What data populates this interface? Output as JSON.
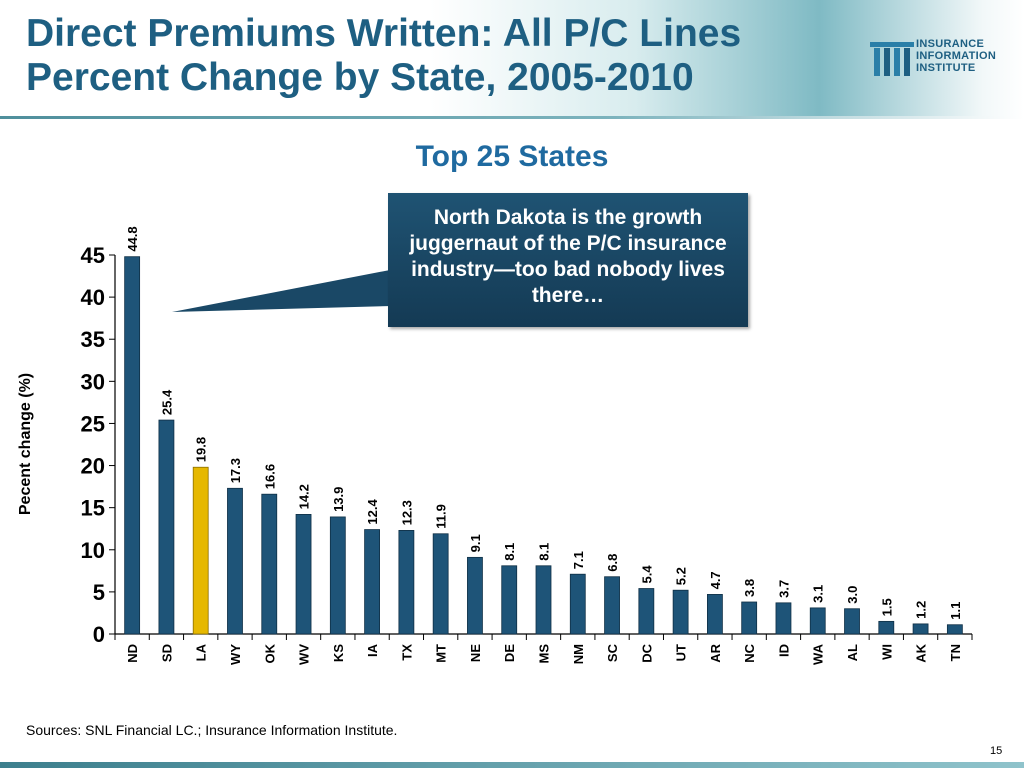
{
  "slide": {
    "title_line1": "Direct Premiums Written: All P/C Lines",
    "title_line2": "Percent Change by State, 2005-2010",
    "logo_lines": [
      "INSURANCE",
      "INFORMATION",
      "INSTITUTE"
    ],
    "callout": "North Dakota is the growth juggernaut of the P/C insurance industry—too bad nobody lives there…",
    "sources": "Sources:  SNL Financial LC.; Insurance Information Institute.",
    "page_number": "15"
  },
  "colors": {
    "title": "#1e5f82",
    "bar": "#1e5478",
    "highlight_bar": "#e6b800",
    "callout_bg": "#1a4866"
  },
  "chart_data": {
    "type": "bar",
    "title": "Top 25 States",
    "ylabel": "Pecent change (%)",
    "xlabel": "",
    "ylim": [
      0,
      45
    ],
    "yticks": [
      0,
      5,
      10,
      15,
      20,
      25,
      30,
      35,
      40,
      45
    ],
    "grid": false,
    "categories": [
      "ND",
      "SD",
      "LA",
      "WY",
      "OK",
      "WV",
      "KS",
      "IA",
      "TX",
      "MT",
      "NE",
      "DE",
      "MS",
      "NM",
      "SC",
      "DC",
      "UT",
      "AR",
      "NC",
      "ID",
      "WA",
      "AL",
      "WI",
      "AK",
      "TN"
    ],
    "values": [
      44.8,
      25.4,
      19.8,
      17.3,
      16.6,
      14.2,
      13.9,
      12.4,
      12.3,
      11.9,
      9.1,
      8.1,
      8.1,
      7.1,
      6.8,
      5.4,
      5.2,
      4.7,
      3.8,
      3.7,
      3.1,
      3.0,
      1.5,
      1.2,
      1.1
    ],
    "value_labels": [
      "44.8",
      "25.4",
      "19.8",
      "17.3",
      "16.6",
      "14.2",
      "13.9",
      "12.4",
      "12.3",
      "11.9",
      "9.1",
      "8.1",
      "8.1",
      "7.1",
      "6.8",
      "5.4",
      "5.2",
      "4.7",
      "3.8",
      "3.7",
      "3.1",
      "3.0",
      "1.5",
      "1.2",
      "1.1"
    ],
    "highlight": "LA"
  }
}
